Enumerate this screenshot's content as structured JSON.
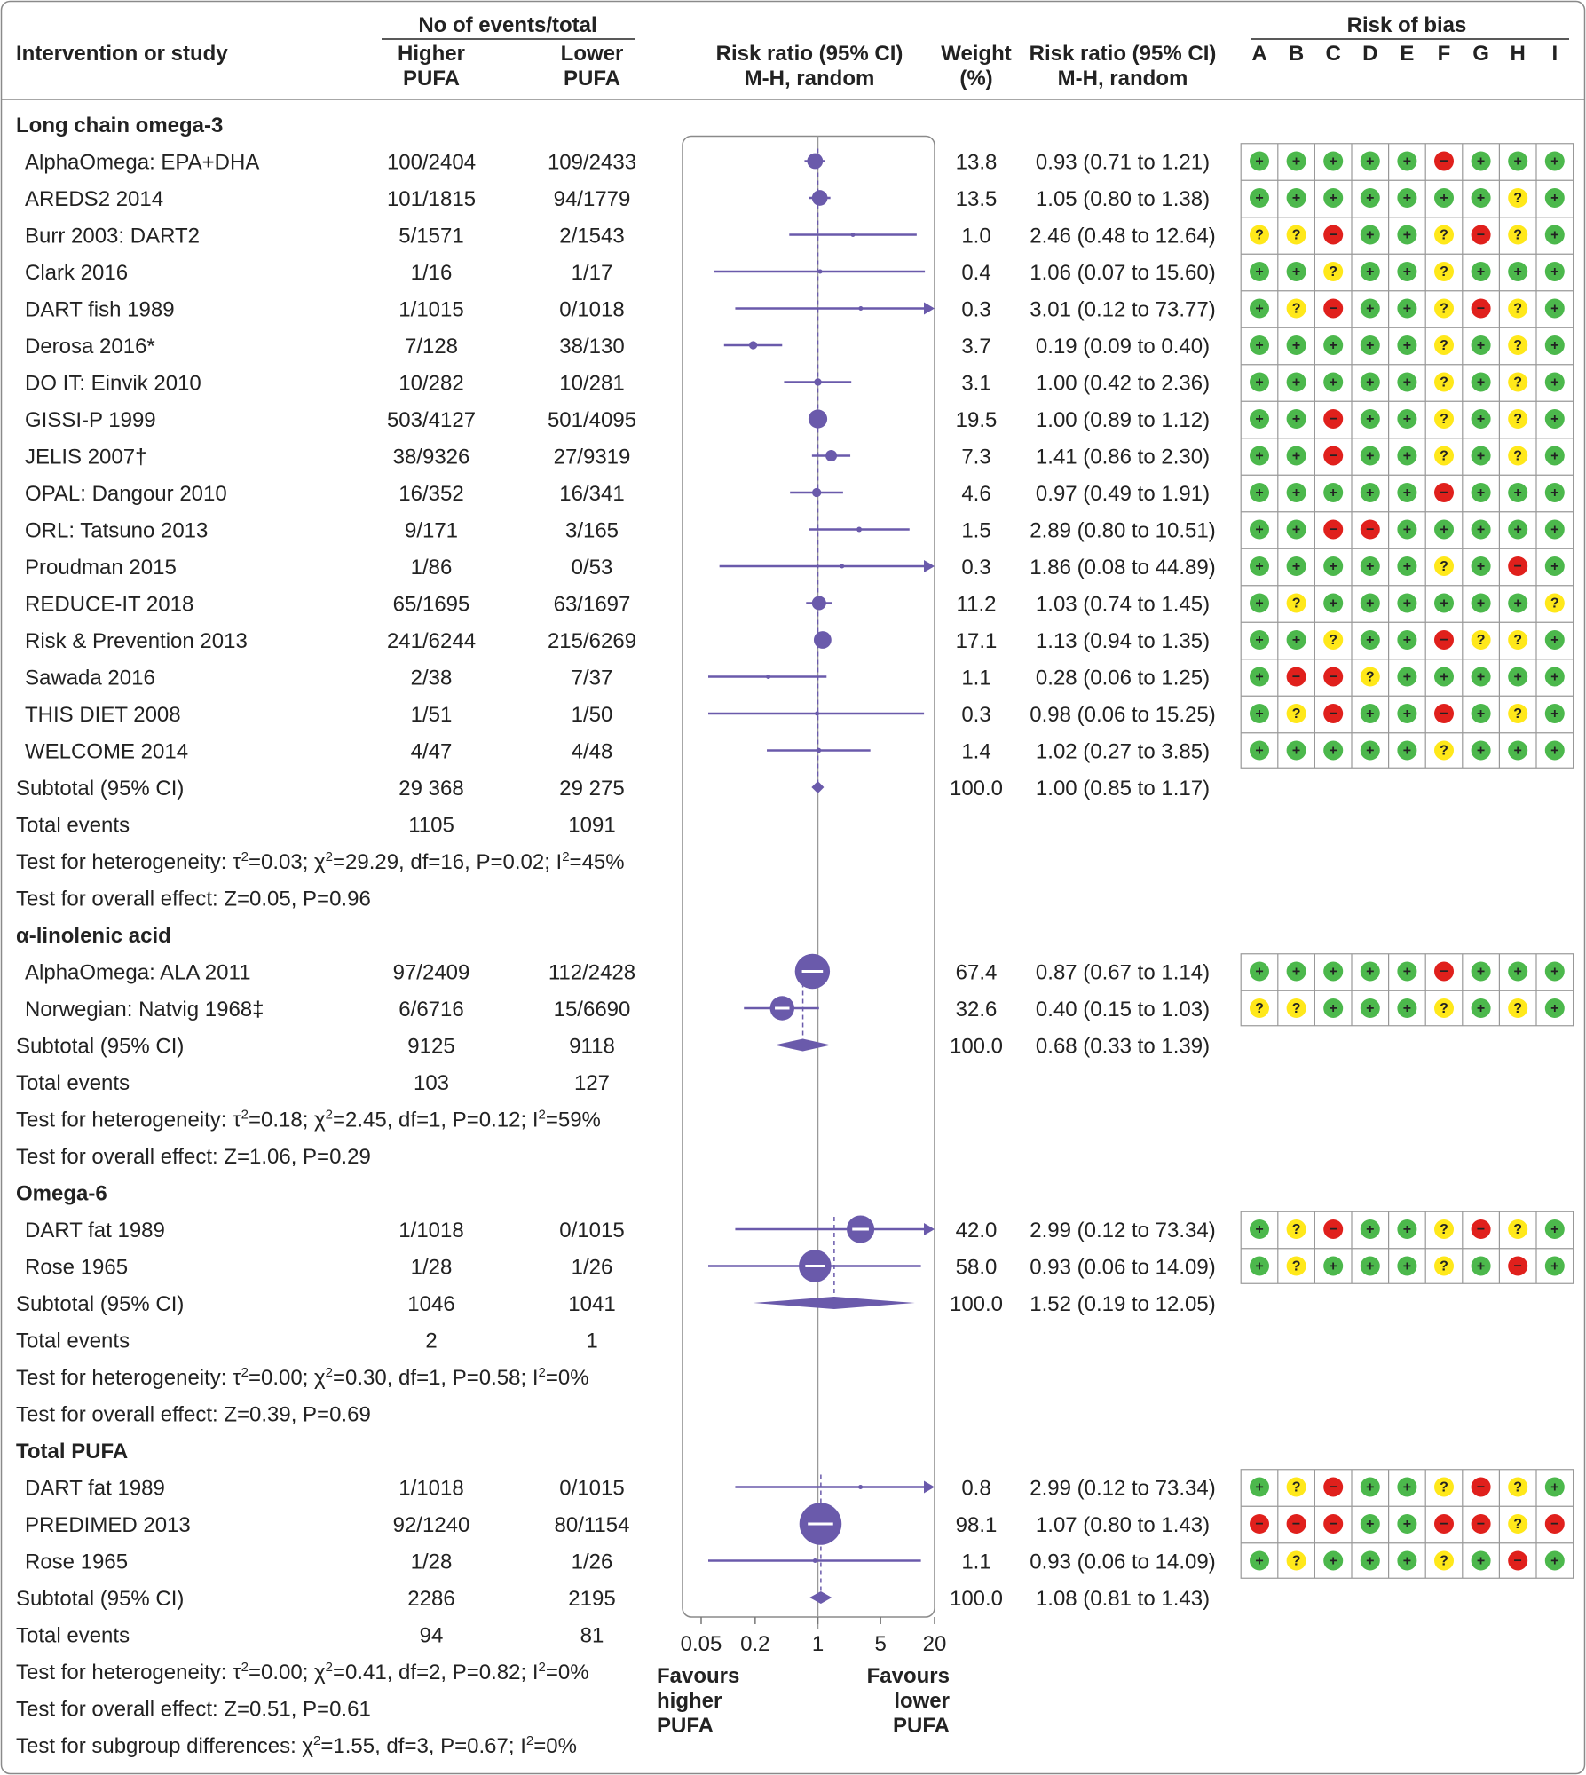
{
  "chart_data": {
    "type": "forest",
    "scale": "log",
    "xlim": [
      0.05,
      20
    ],
    "null_value": 1,
    "x_ticks": [
      {
        "value": 0.05,
        "label": "0.05"
      },
      {
        "value": 0.2,
        "label": "0.2"
      },
      {
        "value": 1,
        "label": "1"
      },
      {
        "value": 5,
        "label": "5"
      },
      {
        "value": 20,
        "label": "20"
      }
    ],
    "favours_left": [
      "Favours",
      "higher",
      "PUFA"
    ],
    "favours_right": [
      "Favours",
      "lower",
      "PUFA"
    ],
    "headers": {
      "study": "Intervention or study",
      "events_group": "No of events/total",
      "higher": [
        "Higher",
        "PUFA"
      ],
      "lower": [
        "Lower",
        "PUFA"
      ],
      "rr_plot": [
        "Risk ratio (95% CI)",
        "M-H, random"
      ],
      "weight": [
        "Weight",
        "(%)"
      ],
      "rr_text": [
        "Risk ratio (95% CI)",
        "M-H, random"
      ],
      "bias": "Risk of bias",
      "bias_cols": [
        "A",
        "B",
        "C",
        "D",
        "E",
        "F",
        "G",
        "H",
        "I"
      ]
    },
    "groups": [
      {
        "name": "Long chain omega-3",
        "studies": [
          {
            "label": "AlphaOmega: EPA+DHA",
            "higher": "100/2404",
            "lower": "109/2433",
            "weight": "13.8",
            "rr_text": "0.93 (0.71 to 1.21)",
            "rr": 0.93,
            "lo": 0.71,
            "hi": 1.21,
            "bias": "+++++-+++"
          },
          {
            "label": "AREDS2 2014",
            "higher": "101/1815",
            "lower": "94/1779",
            "weight": "13.5",
            "rr_text": "1.05 (0.80 to 1.38)",
            "rr": 1.05,
            "lo": 0.8,
            "hi": 1.38,
            "bias": "+++++++?+"
          },
          {
            "label": "Burr 2003: DART2",
            "higher": "5/1571",
            "lower": "2/1543",
            "weight": "1.0",
            "rr_text": "2.46 (0.48 to 12.64)",
            "rr": 2.46,
            "lo": 0.48,
            "hi": 12.64,
            "bias": "??-++?-?+"
          },
          {
            "label": "Clark 2016",
            "higher": "1/16",
            "lower": "1/17",
            "weight": "0.4",
            "rr_text": "1.06 (0.07 to 15.60)",
            "rr": 1.06,
            "lo": 0.07,
            "hi": 15.6,
            "bias": "++?++?+++"
          },
          {
            "label": "DART fish 1989",
            "higher": "1/1015",
            "lower": "0/1018",
            "weight": "0.3",
            "rr_text": "3.01 (0.12 to 73.77)",
            "rr": 3.01,
            "lo": 0.12,
            "hi": 73.77,
            "bias": "+?-++?-?+"
          },
          {
            "label": "Derosa 2016*",
            "higher": "7/128",
            "lower": "38/130",
            "weight": "3.7",
            "rr_text": "0.19 (0.09 to 0.40)",
            "rr": 0.19,
            "lo": 0.09,
            "hi": 0.4,
            "bias": "+++++?+?+"
          },
          {
            "label": "DO IT: Einvik 2010",
            "higher": "10/282",
            "lower": "10/281",
            "weight": "3.1",
            "rr_text": "1.00 (0.42 to 2.36)",
            "rr": 1.0,
            "lo": 0.42,
            "hi": 2.36,
            "bias": "+++++?+?+"
          },
          {
            "label": "GISSI-P 1999",
            "higher": "503/4127",
            "lower": "501/4095",
            "weight": "19.5",
            "rr_text": "1.00 (0.89 to 1.12)",
            "rr": 1.0,
            "lo": 0.89,
            "hi": 1.12,
            "bias": "++-++?+?+"
          },
          {
            "label": "JELIS 2007†",
            "higher": "38/9326",
            "lower": "27/9319",
            "weight": "7.3",
            "rr_text": "1.41 (0.86 to 2.30)",
            "rr": 1.41,
            "lo": 0.86,
            "hi": 2.3,
            "bias": "++-++?+?+"
          },
          {
            "label": "OPAL: Dangour 2010",
            "higher": "16/352",
            "lower": "16/341",
            "weight": "4.6",
            "rr_text": "0.97 (0.49 to 1.91)",
            "rr": 0.97,
            "lo": 0.49,
            "hi": 1.91,
            "bias": "+++++-+++"
          },
          {
            "label": "ORL: Tatsuno 2013",
            "higher": "9/171",
            "lower": "3/165",
            "weight": "1.5",
            "rr_text": "2.89 (0.80 to 10.51)",
            "rr": 2.89,
            "lo": 0.8,
            "hi": 10.51,
            "bias": "++--+++++"
          },
          {
            "label": "Proudman 2015",
            "higher": "1/86",
            "lower": "0/53",
            "weight": "0.3",
            "rr_text": "1.86 (0.08 to 44.89)",
            "rr": 1.86,
            "lo": 0.08,
            "hi": 44.89,
            "bias": "+++++?+-+"
          },
          {
            "label": "REDUCE-IT 2018",
            "higher": "65/1695",
            "lower": "63/1697",
            "weight": "11.2",
            "rr_text": "1.03 (0.74 to 1.45)",
            "rr": 1.03,
            "lo": 0.74,
            "hi": 1.45,
            "bias": "+?++++++?"
          },
          {
            "label": "Risk & Prevention 2013",
            "higher": "241/6244",
            "lower": "215/6269",
            "weight": "17.1",
            "rr_text": "1.13 (0.94 to 1.35)",
            "rr": 1.13,
            "lo": 0.94,
            "hi": 1.35,
            "bias": "++?++-??+"
          },
          {
            "label": "Sawada 2016",
            "higher": "2/38",
            "lower": "7/37",
            "weight": "1.1",
            "rr_text": "0.28 (0.06 to 1.25)",
            "rr": 0.28,
            "lo": 0.06,
            "hi": 1.25,
            "bias": "+--?+++++"
          },
          {
            "label": "THIS DIET 2008",
            "higher": "1/51",
            "lower": "1/50",
            "weight": "0.3",
            "rr_text": "0.98 (0.06 to 15.25)",
            "rr": 0.98,
            "lo": 0.06,
            "hi": 15.25,
            "bias": "+?-++-+?+"
          },
          {
            "label": "WELCOME 2014",
            "higher": "4/47",
            "lower": "4/48",
            "weight": "1.4",
            "rr_text": "1.02 (0.27 to 3.85)",
            "rr": 1.02,
            "lo": 0.27,
            "hi": 3.85,
            "bias": "+++++?+++"
          }
        ],
        "subtotal": {
          "label": "Subtotal (95% CI)",
          "higher": "29 368",
          "lower": "29 275",
          "weight": "100.0",
          "rr_text": "1.00 (0.85 to 1.17)",
          "rr": 1.0,
          "lo": 0.85,
          "hi": 1.17
        },
        "total_events": {
          "label": "Total events",
          "higher": "1105",
          "lower": "1091"
        },
        "heterogeneity": [
          "Test for heterogeneity: τ",
          "2",
          "=0.03; χ",
          "2",
          "=29.29, df=16, P=0.02; I",
          "2",
          "=45%"
        ],
        "overall": "Test for overall effect: Z=0.05, P=0.96"
      },
      {
        "name": "α-linolenic acid",
        "studies": [
          {
            "label": "AlphaOmega: ALA 2011",
            "higher": "97/2409",
            "lower": "112/2428",
            "weight": "67.4",
            "rr_text": "0.87 (0.67 to 1.14)",
            "rr": 0.87,
            "lo": 0.67,
            "hi": 1.14,
            "bias": "+++++-+++"
          },
          {
            "label": "Norwegian: Natvig 1968‡",
            "higher": "6/6716",
            "lower": "15/6690",
            "weight": "32.6",
            "rr_text": "0.40 (0.15 to 1.03)",
            "rr": 0.4,
            "lo": 0.15,
            "hi": 1.03,
            "bias": "??+++?+?+"
          }
        ],
        "subtotal": {
          "label": "Subtotal (95% CI)",
          "higher": "9125",
          "lower": "9118",
          "weight": "100.0",
          "rr_text": "0.68 (0.33 to 1.39)",
          "rr": 0.68,
          "lo": 0.33,
          "hi": 1.39
        },
        "total_events": {
          "label": "Total events",
          "higher": "103",
          "lower": "127"
        },
        "heterogeneity": [
          "Test for heterogeneity: τ",
          "2",
          "=0.18; χ",
          "2",
          "=2.45, df=1, P=0.12; I",
          "2",
          "=59%"
        ],
        "overall": "Test for overall effect: Z=1.06, P=0.29"
      },
      {
        "name": "Omega-6",
        "studies": [
          {
            "label": "DART fat 1989",
            "higher": "1/1018",
            "lower": "0/1015",
            "weight": "42.0",
            "rr_text": "2.99 (0.12 to 73.34)",
            "rr": 2.99,
            "lo": 0.12,
            "hi": 73.34,
            "bias": "+?-++?-?+"
          },
          {
            "label": "Rose 1965",
            "higher": "1/28",
            "lower": "1/26",
            "weight": "58.0",
            "rr_text": "0.93 (0.06 to 14.09)",
            "rr": 0.93,
            "lo": 0.06,
            "hi": 14.09,
            "bias": "+?+++?+-+"
          }
        ],
        "subtotal": {
          "label": "Subtotal (95% CI)",
          "higher": "1046",
          "lower": "1041",
          "weight": "100.0",
          "rr_text": "1.52 (0.19 to 12.05)",
          "rr": 1.52,
          "lo": 0.19,
          "hi": 12.05
        },
        "total_events": {
          "label": "Total events",
          "higher": "2",
          "lower": "1"
        },
        "heterogeneity": [
          "Test for heterogeneity: τ",
          "2",
          "=0.00; χ",
          "2",
          "=0.30, df=1, P=0.58; I",
          "2",
          "=0%"
        ],
        "overall": "Test for overall effect: Z=0.39, P=0.69"
      },
      {
        "name": "Total PUFA",
        "studies": [
          {
            "label": "DART fat 1989",
            "higher": "1/1018",
            "lower": "0/1015",
            "weight": "0.8",
            "rr_text": "2.99 (0.12 to 73.34)",
            "rr": 2.99,
            "lo": 0.12,
            "hi": 73.34,
            "bias": "+?-++?-?+"
          },
          {
            "label": "PREDIMED 2013",
            "higher": "92/1240",
            "lower": "80/1154",
            "weight": "98.1",
            "rr_text": "1.07 (0.80 to 1.43)",
            "rr": 1.07,
            "lo": 0.8,
            "hi": 1.43,
            "bias": "---++--?-"
          },
          {
            "label": "Rose 1965",
            "higher": "1/28",
            "lower": "1/26",
            "weight": "1.1",
            "rr_text": "0.93 (0.06 to 14.09)",
            "rr": 0.93,
            "lo": 0.06,
            "hi": 14.09,
            "bias": "+?+++?+-+"
          }
        ],
        "subtotal": {
          "label": "Subtotal (95% CI)",
          "higher": "2286",
          "lower": "2195",
          "weight": "100.0",
          "rr_text": "1.08 (0.81 to 1.43)",
          "rr": 1.08,
          "lo": 0.81,
          "hi": 1.43
        },
        "total_events": {
          "label": "Total events",
          "higher": "94",
          "lower": "81"
        },
        "heterogeneity": [
          "Test for heterogeneity: τ",
          "2",
          "=0.00; χ",
          "2",
          "=0.41, df=2, P=0.82; I",
          "2",
          "=0%"
        ],
        "overall": "Test for overall effect: Z=0.51, P=0.61"
      }
    ],
    "subgroup_test": [
      "Test for subgroup differences:  χ",
      "2",
      "=1.55, df=3, P=0.67; I",
      "2",
      "=0%"
    ],
    "colors": {
      "marker": "#6a5aab",
      "low_risk": "#4cb84c",
      "unclear_risk": "#ffe81a",
      "high_risk": "#e0201c",
      "border": "#8a8a8a",
      "text": "#222222"
    }
  }
}
